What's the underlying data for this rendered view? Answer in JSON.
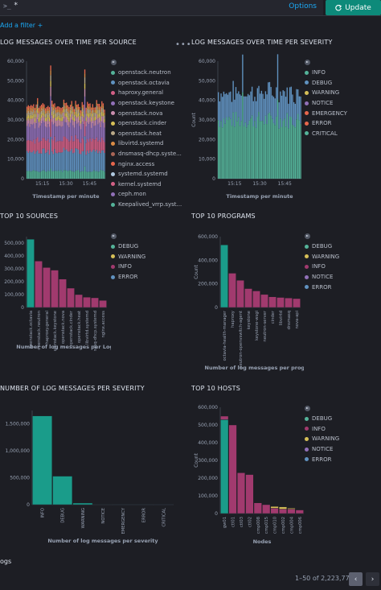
{
  "query": {
    "prompt": ">_",
    "text": "*",
    "options_label": "Options",
    "update_label": "Update",
    "update_icon": "refresh-icon"
  },
  "filter": {
    "add_label": "Add a filter +"
  },
  "colors": {
    "teal": "#1a9c8a",
    "pink": "#a13a6e",
    "green": "#54b399",
    "yellow": "#d6bf57",
    "blue": "#6092c0",
    "purple": "#9170b8",
    "rose": "#ca8eae",
    "orange": "#e7664c",
    "tan": "#da8b45",
    "red": "#e7664c",
    "lightblue": "#6092c0"
  },
  "panels": {
    "p1": {
      "title": "LOG MESSAGES OVER TIME PER SOURCE",
      "menu": "•••",
      "legend": [
        {
          "label": "openstack.neutron",
          "color": "#54b399"
        },
        {
          "label": "openstack.octavia",
          "color": "#6092c0"
        },
        {
          "label": "haproxy.general",
          "color": "#d36086"
        },
        {
          "label": "openstack.keystone",
          "color": "#9170b8"
        },
        {
          "label": "openstack.nova",
          "color": "#ca8eae"
        },
        {
          "label": "openstack.cinder",
          "color": "#d6bf57"
        },
        {
          "label": "openstack.heat",
          "color": "#b9a888"
        },
        {
          "label": "libvirtd.systemd",
          "color": "#da8b45"
        },
        {
          "label": "dnsmasq-dhcp.syste...",
          "color": "#aa6556"
        },
        {
          "label": "nginx.access",
          "color": "#e7664c"
        },
        {
          "label": "systemd.systemd",
          "color": "#b0c9e0"
        },
        {
          "label": "kernel.systemd",
          "color": "#d36086"
        },
        {
          "label": "ceph.mon",
          "color": "#9170b8"
        },
        {
          "label": "Keepalived_vrrp.syst...",
          "color": "#54b399"
        }
      ]
    },
    "p2": {
      "title": "LOG MESSAGES OVER TIME PER SEVERITY",
      "legend": [
        {
          "label": "INFO",
          "color": "#54b399"
        },
        {
          "label": "DEBUG",
          "color": "#6092c0"
        },
        {
          "label": "WARNING",
          "color": "#d6bf57"
        },
        {
          "label": "NOTICE",
          "color": "#9170b8"
        },
        {
          "label": "EMERGENCY",
          "color": "#e7664c"
        },
        {
          "label": "ERROR",
          "color": "#e7664c"
        },
        {
          "label": "CRITICAL",
          "color": "#54b399"
        }
      ]
    },
    "p3": {
      "title": "TOP 10 SOURCES",
      "legend": [
        {
          "label": "DEBUG",
          "color": "#54b399"
        },
        {
          "label": "WARNING",
          "color": "#d6bf57"
        },
        {
          "label": "INFO",
          "color": "#a13a6e"
        },
        {
          "label": "ERROR",
          "color": "#6092c0"
        }
      ]
    },
    "p4": {
      "title": "TOP 10 PROGRAMS",
      "legend": [
        {
          "label": "DEBUG",
          "color": "#54b399"
        },
        {
          "label": "WARNING",
          "color": "#d6bf57"
        },
        {
          "label": "INFO",
          "color": "#a13a6e"
        },
        {
          "label": "NOTICE",
          "color": "#9170b8"
        },
        {
          "label": "ERROR",
          "color": "#6092c0"
        }
      ]
    },
    "p5": {
      "title": "NUMBER OF LOG MESSAGES PER SEVERITY"
    },
    "p6": {
      "title": "TOP 10 HOSTS",
      "legend": [
        {
          "label": "DEBUG",
          "color": "#54b399"
        },
        {
          "label": "INFO",
          "color": "#a13a6e"
        },
        {
          "label": "WARNING",
          "color": "#d6bf57"
        },
        {
          "label": "NOTICE",
          "color": "#9170b8"
        },
        {
          "label": "ERROR",
          "color": "#6092c0"
        }
      ]
    }
  },
  "chart_data": [
    {
      "type": "bar",
      "title": "LOG MESSAGES OVER TIME PER SOURCE",
      "xlabel": "Timestamp per minute",
      "ylabel": "",
      "ylim": [
        0,
        60000
      ],
      "yticks": [
        "60,000",
        "50,000",
        "40,000",
        "30,000",
        "20,000",
        "10,000",
        "0"
      ],
      "xticks": [
        "15:15",
        "15:30",
        "15:45"
      ],
      "stacked": true,
      "series_colors": [
        "#54b399",
        "#6092c0",
        "#d36086",
        "#9170b8",
        "#ca8eae",
        "#d6bf57",
        "#b9a888",
        "#da8b45",
        "#e7664c"
      ],
      "series_layers": [
        4000,
        10000,
        6000,
        8000,
        3000,
        2000,
        2000,
        1500,
        1500
      ]
    },
    {
      "type": "bar",
      "title": "LOG MESSAGES OVER TIME PER SEVERITY",
      "xlabel": "Timestamp per minute",
      "ylabel": "Count",
      "ylim": [
        0,
        60000
      ],
      "yticks": [
        "60,000",
        "50,000",
        "40,000",
        "30,000",
        "20,000",
        "10,000",
        "0"
      ],
      "xticks": [
        "15:15",
        "15:30",
        "15:45"
      ],
      "stacked": true,
      "series": [
        {
          "name": "INFO",
          "value": 30000
        },
        {
          "name": "DEBUG",
          "value": 14000
        }
      ]
    },
    {
      "type": "bar",
      "title": "TOP 10 SOURCES",
      "xlabel": "Number of log messages per Logg",
      "ylabel": "",
      "ylim": [
        0,
        550000
      ],
      "yticks": [
        "500,000",
        "400,000",
        "300,000",
        "200,000",
        "100,000",
        "0"
      ],
      "categories": [
        "openstack.octavia",
        "openstack.neutron",
        "haproxy.general",
        "openstack.keystone",
        "openstack.nova",
        "openstack.cinder",
        "openstack.heat",
        "libvirtd.systemd",
        "dnsmasq-dhcp.systemd",
        "nginx.access"
      ],
      "series": [
        {
          "name": "DEBUG",
          "values": [
            530000,
            0,
            0,
            0,
            0,
            0,
            0,
            0,
            0,
            0
          ]
        },
        {
          "name": "INFO",
          "values": [
            0,
            360000,
            310000,
            290000,
            220000,
            150000,
            100000,
            80000,
            75000,
            55000
          ]
        }
      ]
    },
    {
      "type": "bar",
      "title": "TOP 10 PROGRAMS",
      "xlabel": "Number of log messages per program",
      "ylabel": "Count",
      "ylim": [
        0,
        600000
      ],
      "yticks": [
        "600,000",
        "400,000",
        "200,000",
        "0"
      ],
      "categories": [
        "octavia-health-manager",
        "haproxy",
        "neutron-openvswitch-agent",
        "keystone",
        "keystone-wsgi",
        "neutron-server",
        "cinder",
        "libvirtd",
        "dnsmasq",
        "nova-api"
      ],
      "series": [
        {
          "name": "DEBUG",
          "values": [
            530000,
            0,
            0,
            0,
            0,
            0,
            0,
            0,
            0,
            0
          ]
        },
        {
          "name": "INFO",
          "values": [
            0,
            290000,
            230000,
            160000,
            140000,
            110000,
            90000,
            85000,
            80000,
            75000
          ]
        }
      ]
    },
    {
      "type": "bar",
      "title": "NUMBER OF LOG MESSAGES PER SEVERITY",
      "xlabel": "Number of log messages per severity",
      "ylabel": "",
      "ylim": [
        0,
        1750000
      ],
      "yticks": [
        "1,500,000",
        "1,000,000",
        "500,000",
        "0"
      ],
      "categories": [
        "INFO",
        "DEBUG",
        "WARNING",
        "NOTICE",
        "EMERGENCY",
        "ERROR",
        "CRITICAL"
      ],
      "values": [
        1650000,
        530000,
        30000,
        2000,
        1000,
        1000,
        500
      ]
    },
    {
      "type": "bar",
      "title": "TOP 10 HOSTS",
      "xlabel": "Nodes",
      "ylabel": "Count",
      "ylim": [
        0,
        600000
      ],
      "yticks": [
        "600,000",
        "500,000",
        "400,000",
        "300,000",
        "200,000",
        "100,000",
        "0"
      ],
      "categories": [
        "gw01",
        "ctl01",
        "ctl03",
        "ctl02",
        "cmp008",
        "cmp015",
        "cmp010",
        "cmp002",
        "cmp004",
        "cmp006"
      ],
      "series": [
        {
          "name": "DEBUG",
          "values": [
            530000,
            0,
            0,
            0,
            0,
            0,
            0,
            0,
            0,
            0
          ]
        },
        {
          "name": "INFO",
          "values": [
            20000,
            500000,
            230000,
            220000,
            60000,
            50000,
            30000,
            25000,
            25000,
            20000
          ]
        },
        {
          "name": "WARNING",
          "values": [
            0,
            0,
            0,
            0,
            0,
            0,
            10000,
            12000,
            5000,
            0
          ]
        }
      ]
    }
  ],
  "footer": {
    "section_label": "ogs",
    "pagination_text": "1–50 of 2,223,772",
    "prev_label": "‹",
    "next_label": "›"
  }
}
